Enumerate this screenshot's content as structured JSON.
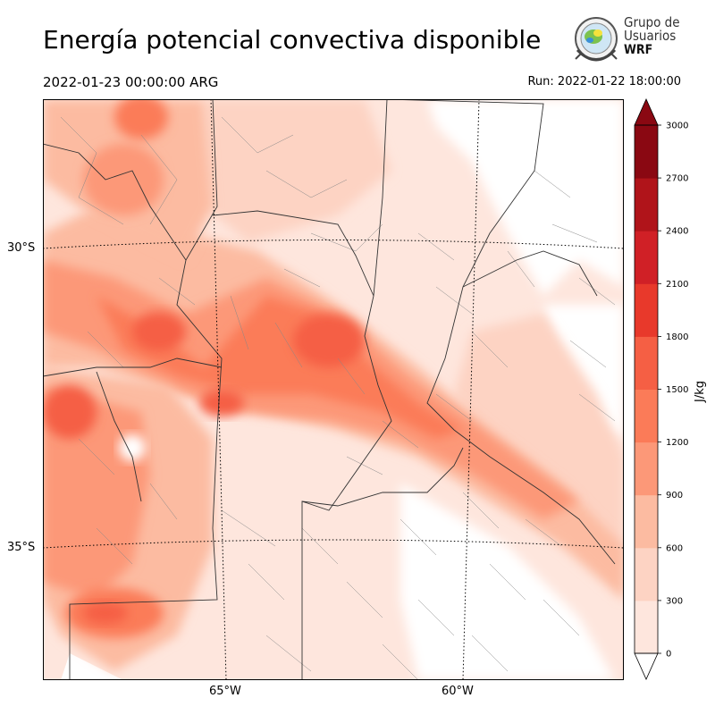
{
  "title": "Energía potencial convectiva disponible",
  "valid_time": "2022-01-23 00:00:00 ARG",
  "run_time": "Run: 2022-01-22 18:00:00",
  "logo": {
    "line1": "Grupo de",
    "line2": "Usuarios",
    "line3": "WRF"
  },
  "map": {
    "lat_labels": [
      "30°S",
      "35°S"
    ],
    "lon_labels": [
      "65°W",
      "60°W"
    ]
  },
  "colorbar": {
    "unit": "J/kg",
    "ticks": [
      "0",
      "300",
      "600",
      "900",
      "1200",
      "1500",
      "1800",
      "2100",
      "2400",
      "2700",
      "3000"
    ],
    "levels": [
      0,
      300,
      600,
      900,
      1200,
      1500,
      1800,
      2100,
      2400,
      2700,
      3000
    ],
    "colors": [
      "#fee6dd",
      "#fdd3c3",
      "#fcbba1",
      "#fc9878",
      "#fb7b58",
      "#f55f44",
      "#e8392b",
      "#d02026",
      "#b0141a",
      "#8a0812"
    ]
  }
}
